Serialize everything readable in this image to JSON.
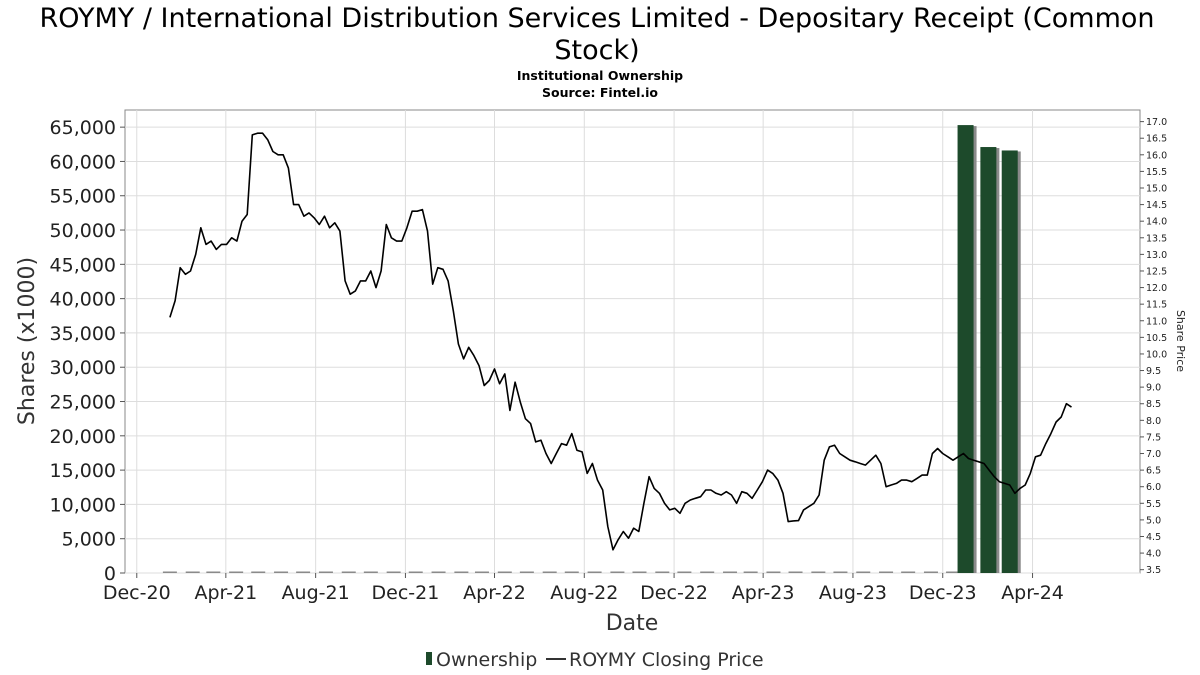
{
  "chart_data": {
    "type": "bar+line",
    "title_line1": "ROYMY / International Distribution Services Limited - Depositary Receipt (Common",
    "title_line2": "Stock)",
    "subtitle": "Institutional Ownership",
    "source": "Source: Fintel.io",
    "xlabel": "Date",
    "ylabel": "Shares (x1000)",
    "y2label": "Share Price",
    "ylim": [
      0,
      67500
    ],
    "y2lim": [
      3.4,
      17.35
    ],
    "xlim": [
      "2020-11-15",
      "2024-08-25"
    ],
    "grid": true,
    "legend_position": "bottom-center",
    "x_ticks": [
      {
        "date": "2020-12-01",
        "label": "Dec-20"
      },
      {
        "date": "2021-04-01",
        "label": "Apr-21"
      },
      {
        "date": "2021-08-01",
        "label": "Aug-21"
      },
      {
        "date": "2021-12-01",
        "label": "Dec-21"
      },
      {
        "date": "2022-04-01",
        "label": "Apr-22"
      },
      {
        "date": "2022-08-01",
        "label": "Aug-22"
      },
      {
        "date": "2022-12-01",
        "label": "Dec-22"
      },
      {
        "date": "2023-04-01",
        "label": "Apr-23"
      },
      {
        "date": "2023-08-01",
        "label": "Aug-23"
      },
      {
        "date": "2023-12-01",
        "label": "Dec-23"
      },
      {
        "date": "2024-04-01",
        "label": "Apr-24"
      }
    ],
    "y_ticks": [
      {
        "value": 0,
        "label": "0"
      },
      {
        "value": 5000,
        "label": "5,000"
      },
      {
        "value": 10000,
        "label": "10,000"
      },
      {
        "value": 15000,
        "label": "15,000"
      },
      {
        "value": 20000,
        "label": "20,000"
      },
      {
        "value": 25000,
        "label": "25,000"
      },
      {
        "value": 30000,
        "label": "30,000"
      },
      {
        "value": 35000,
        "label": "35,000"
      },
      {
        "value": 40000,
        "label": "40,000"
      },
      {
        "value": 45000,
        "label": "45,000"
      },
      {
        "value": 50000,
        "label": "50,000"
      },
      {
        "value": 55000,
        "label": "55,000"
      },
      {
        "value": 60000,
        "label": "60,000"
      },
      {
        "value": 65000,
        "label": "65,000"
      }
    ],
    "y2_ticks": [
      {
        "value": 3.5,
        "label": "3.5"
      },
      {
        "value": 4.0,
        "label": "4.0"
      },
      {
        "value": 4.5,
        "label": "4.5"
      },
      {
        "value": 5.0,
        "label": "5.0"
      },
      {
        "value": 5.5,
        "label": "5.5"
      },
      {
        "value": 6.0,
        "label": "6.0"
      },
      {
        "value": 6.5,
        "label": "6.5"
      },
      {
        "value": 7.0,
        "label": "7.0"
      },
      {
        "value": 7.5,
        "label": "7.5"
      },
      {
        "value": 8.0,
        "label": "8.0"
      },
      {
        "value": 8.5,
        "label": "8.5"
      },
      {
        "value": 9.0,
        "label": "9.0"
      },
      {
        "value": 9.5,
        "label": "9.5"
      },
      {
        "value": 10.0,
        "label": "10.0"
      },
      {
        "value": 10.5,
        "label": "10.5"
      },
      {
        "value": 11.0,
        "label": "11.0"
      },
      {
        "value": 11.5,
        "label": "11.5"
      },
      {
        "value": 12.0,
        "label": "12.0"
      },
      {
        "value": 12.5,
        "label": "12.5"
      },
      {
        "value": 13.0,
        "label": "13.0"
      },
      {
        "value": 13.5,
        "label": "13.5"
      },
      {
        "value": 14.0,
        "label": "14.0"
      },
      {
        "value": 14.5,
        "label": "14.5"
      },
      {
        "value": 15.0,
        "label": "15.0"
      },
      {
        "value": 15.5,
        "label": "15.5"
      },
      {
        "value": 16.0,
        "label": "16.0"
      },
      {
        "value": 16.5,
        "label": "16.5"
      },
      {
        "value": 17.0,
        "label": "17.0"
      }
    ],
    "legend": [
      {
        "name": "Ownership",
        "color": "#1d4a2b"
      },
      {
        "name": "ROYMY Closing Price",
        "color": "#000000"
      }
    ],
    "series": [
      {
        "name": "Ownership",
        "kind": "bar",
        "axis": "left",
        "color": "#1d4a2b",
        "shadow_color": "#8a8a8a",
        "points": [
          {
            "date": "2021-01-15",
            "value": 0
          },
          {
            "date": "2021-02-15",
            "value": 0
          },
          {
            "date": "2021-03-15",
            "value": 0
          },
          {
            "date": "2021-04-15",
            "value": 0
          },
          {
            "date": "2021-05-15",
            "value": 0
          },
          {
            "date": "2021-06-15",
            "value": 0
          },
          {
            "date": "2021-07-15",
            "value": 0
          },
          {
            "date": "2021-08-15",
            "value": 0
          },
          {
            "date": "2021-09-15",
            "value": 0
          },
          {
            "date": "2021-10-15",
            "value": 0
          },
          {
            "date": "2021-11-15",
            "value": 0
          },
          {
            "date": "2021-12-15",
            "value": 0
          },
          {
            "date": "2022-01-15",
            "value": 0
          },
          {
            "date": "2022-02-15",
            "value": 0
          },
          {
            "date": "2022-03-15",
            "value": 0
          },
          {
            "date": "2022-04-15",
            "value": 0
          },
          {
            "date": "2022-05-15",
            "value": 0
          },
          {
            "date": "2022-06-15",
            "value": 0
          },
          {
            "date": "2022-07-15",
            "value": 0
          },
          {
            "date": "2022-08-15",
            "value": 0
          },
          {
            "date": "2022-09-15",
            "value": 0
          },
          {
            "date": "2022-10-15",
            "value": 0
          },
          {
            "date": "2022-11-15",
            "value": 0
          },
          {
            "date": "2022-12-15",
            "value": 0
          },
          {
            "date": "2023-01-15",
            "value": 0
          },
          {
            "date": "2023-02-15",
            "value": 0
          },
          {
            "date": "2023-03-15",
            "value": 0
          },
          {
            "date": "2023-04-15",
            "value": 0
          },
          {
            "date": "2023-05-15",
            "value": 0
          },
          {
            "date": "2023-06-15",
            "value": 0
          },
          {
            "date": "2023-07-15",
            "value": 0
          },
          {
            "date": "2023-08-15",
            "value": 0
          },
          {
            "date": "2023-09-15",
            "value": 0
          },
          {
            "date": "2023-10-15",
            "value": 0
          },
          {
            "date": "2023-11-15",
            "value": 0
          },
          {
            "date": "2023-12-15",
            "value": 0
          },
          {
            "date": "2024-01-01",
            "value": 65300
          },
          {
            "date": "2024-02-01",
            "value": 62100
          },
          {
            "date": "2024-03-01",
            "value": 61600
          }
        ]
      },
      {
        "name": "ROYMY Closing Price",
        "kind": "line",
        "axis": "right",
        "color": "#000000",
        "points": [
          [
            "2021-01-15",
            11.1
          ],
          [
            "2021-01-22",
            11.6
          ],
          [
            "2021-01-29",
            12.6
          ],
          [
            "2021-02-05",
            12.4
          ],
          [
            "2021-02-12",
            12.5
          ],
          [
            "2021-02-19",
            13.0
          ],
          [
            "2021-02-26",
            13.8
          ],
          [
            "2021-03-05",
            13.3
          ],
          [
            "2021-03-12",
            13.4
          ],
          [
            "2021-03-19",
            13.15
          ],
          [
            "2021-03-26",
            13.3
          ],
          [
            "2021-04-02",
            13.3
          ],
          [
            "2021-04-09",
            13.5
          ],
          [
            "2021-04-16",
            13.4
          ],
          [
            "2021-04-23",
            14.0
          ],
          [
            "2021-04-30",
            14.2
          ],
          [
            "2021-05-07",
            16.6
          ],
          [
            "2021-05-14",
            16.65
          ],
          [
            "2021-05-21",
            16.65
          ],
          [
            "2021-05-28",
            16.45
          ],
          [
            "2021-06-04",
            16.1
          ],
          [
            "2021-06-11",
            16.0
          ],
          [
            "2021-06-18",
            16.0
          ],
          [
            "2021-06-25",
            15.6
          ],
          [
            "2021-07-02",
            14.5
          ],
          [
            "2021-07-09",
            14.5
          ],
          [
            "2021-07-16",
            14.15
          ],
          [
            "2021-07-23",
            14.25
          ],
          [
            "2021-07-30",
            14.1
          ],
          [
            "2021-08-06",
            13.9
          ],
          [
            "2021-08-13",
            14.15
          ],
          [
            "2021-08-20",
            13.8
          ],
          [
            "2021-08-27",
            13.95
          ],
          [
            "2021-09-03",
            13.7
          ],
          [
            "2021-09-10",
            12.2
          ],
          [
            "2021-09-17",
            11.8
          ],
          [
            "2021-09-24",
            11.9
          ],
          [
            "2021-10-01",
            12.2
          ],
          [
            "2021-10-08",
            12.2
          ],
          [
            "2021-10-15",
            12.5
          ],
          [
            "2021-10-22",
            12.0
          ],
          [
            "2021-10-29",
            12.5
          ],
          [
            "2021-11-05",
            13.9
          ],
          [
            "2021-11-12",
            13.5
          ],
          [
            "2021-11-19",
            13.4
          ],
          [
            "2021-11-26",
            13.4
          ],
          [
            "2021-12-03",
            13.8
          ],
          [
            "2021-12-10",
            14.3
          ],
          [
            "2021-12-17",
            14.3
          ],
          [
            "2021-12-24",
            14.35
          ],
          [
            "2021-12-31",
            13.7
          ],
          [
            "2022-01-07",
            12.1
          ],
          [
            "2022-01-14",
            12.6
          ],
          [
            "2022-01-21",
            12.55
          ],
          [
            "2022-01-28",
            12.2
          ],
          [
            "2022-02-04",
            11.3
          ],
          [
            "2022-02-11",
            10.3
          ],
          [
            "2022-02-18",
            9.85
          ],
          [
            "2022-02-25",
            10.2
          ],
          [
            "2022-03-04",
            9.95
          ],
          [
            "2022-03-11",
            9.65
          ],
          [
            "2022-03-18",
            9.05
          ],
          [
            "2022-03-25",
            9.2
          ],
          [
            "2022-04-01",
            9.55
          ],
          [
            "2022-04-08",
            9.1
          ],
          [
            "2022-04-15",
            9.4
          ],
          [
            "2022-04-22",
            8.3
          ],
          [
            "2022-04-29",
            9.15
          ],
          [
            "2022-05-06",
            8.55
          ],
          [
            "2022-05-13",
            8.05
          ],
          [
            "2022-05-20",
            7.9
          ],
          [
            "2022-05-27",
            7.35
          ],
          [
            "2022-06-03",
            7.4
          ],
          [
            "2022-06-10",
            7.0
          ],
          [
            "2022-06-17",
            6.7
          ],
          [
            "2022-06-24",
            7.0
          ],
          [
            "2022-07-01",
            7.3
          ],
          [
            "2022-07-08",
            7.25
          ],
          [
            "2022-07-15",
            7.6
          ],
          [
            "2022-07-22",
            7.1
          ],
          [
            "2022-07-29",
            7.05
          ],
          [
            "2022-08-05",
            6.4
          ],
          [
            "2022-08-12",
            6.7
          ],
          [
            "2022-08-19",
            6.2
          ],
          [
            "2022-08-26",
            5.9
          ],
          [
            "2022-09-02",
            4.8
          ],
          [
            "2022-09-09",
            4.1
          ],
          [
            "2022-09-16",
            4.4
          ],
          [
            "2022-09-23",
            4.65
          ],
          [
            "2022-09-30",
            4.45
          ],
          [
            "2022-10-07",
            4.75
          ],
          [
            "2022-10-14",
            4.65
          ],
          [
            "2022-10-21",
            5.5
          ],
          [
            "2022-10-28",
            6.3
          ],
          [
            "2022-11-04",
            5.95
          ],
          [
            "2022-11-11",
            5.8
          ],
          [
            "2022-11-18",
            5.5
          ],
          [
            "2022-11-25",
            5.3
          ],
          [
            "2022-12-02",
            5.35
          ],
          [
            "2022-12-09",
            5.2
          ],
          [
            "2022-12-16",
            5.5
          ],
          [
            "2022-12-23",
            5.6
          ],
          [
            "2022-12-30",
            5.65
          ],
          [
            "2023-01-06",
            5.7
          ],
          [
            "2023-01-13",
            5.9
          ],
          [
            "2023-01-20",
            5.9
          ],
          [
            "2023-01-27",
            5.8
          ],
          [
            "2023-02-03",
            5.75
          ],
          [
            "2023-02-10",
            5.85
          ],
          [
            "2023-02-17",
            5.75
          ],
          [
            "2023-02-24",
            5.5
          ],
          [
            "2023-03-03",
            5.85
          ],
          [
            "2023-03-10",
            5.8
          ],
          [
            "2023-03-17",
            5.65
          ],
          [
            "2023-03-24",
            5.9
          ],
          [
            "2023-03-31",
            6.15
          ],
          [
            "2023-04-07",
            6.5
          ],
          [
            "2023-04-14",
            6.4
          ],
          [
            "2023-04-21",
            6.2
          ],
          [
            "2023-04-28",
            5.8
          ],
          [
            "2023-05-05",
            4.95
          ],
          [
            "2023-05-12",
            4.97
          ],
          [
            "2023-05-19",
            4.98
          ],
          [
            "2023-05-26",
            5.3
          ],
          [
            "2023-06-02",
            5.4
          ],
          [
            "2023-06-09",
            5.5
          ],
          [
            "2023-06-16",
            5.75
          ],
          [
            "2023-06-23",
            6.8
          ],
          [
            "2023-06-30",
            7.2
          ],
          [
            "2023-07-07",
            7.25
          ],
          [
            "2023-07-14",
            7.0
          ],
          [
            "2023-07-21",
            6.9
          ],
          [
            "2023-07-28",
            6.8
          ],
          [
            "2023-08-04",
            6.75
          ],
          [
            "2023-08-11",
            6.7
          ],
          [
            "2023-08-18",
            6.65
          ],
          [
            "2023-08-25",
            6.8
          ],
          [
            "2023-09-01",
            6.95
          ],
          [
            "2023-09-08",
            6.7
          ],
          [
            "2023-09-15",
            6.0
          ],
          [
            "2023-09-22",
            6.05
          ],
          [
            "2023-09-29",
            6.1
          ],
          [
            "2023-10-06",
            6.2
          ],
          [
            "2023-10-13",
            6.2
          ],
          [
            "2023-10-20",
            6.15
          ],
          [
            "2023-10-27",
            6.25
          ],
          [
            "2023-11-03",
            6.35
          ],
          [
            "2023-11-10",
            6.35
          ],
          [
            "2023-11-17",
            7.0
          ],
          [
            "2023-11-24",
            7.15
          ],
          [
            "2023-12-01",
            7.0
          ],
          [
            "2023-12-08",
            6.9
          ],
          [
            "2023-12-15",
            6.8
          ],
          [
            "2023-12-22",
            6.9
          ],
          [
            "2023-12-29",
            7.0
          ],
          [
            "2024-01-05",
            6.85
          ],
          [
            "2024-01-12",
            6.8
          ],
          [
            "2024-01-19",
            6.75
          ],
          [
            "2024-01-26",
            6.7
          ],
          [
            "2024-02-02",
            6.5
          ],
          [
            "2024-02-09",
            6.3
          ],
          [
            "2024-02-16",
            6.15
          ],
          [
            "2024-02-23",
            6.1
          ],
          [
            "2024-03-01",
            6.05
          ],
          [
            "2024-03-08",
            5.8
          ],
          [
            "2024-03-15",
            5.95
          ],
          [
            "2024-03-22",
            6.05
          ],
          [
            "2024-03-29",
            6.4
          ],
          [
            "2024-04-05",
            6.9
          ],
          [
            "2024-04-12",
            6.95
          ],
          [
            "2024-04-19",
            7.3
          ],
          [
            "2024-04-26",
            7.6
          ],
          [
            "2024-05-03",
            7.95
          ],
          [
            "2024-05-10",
            8.1
          ],
          [
            "2024-05-17",
            8.5
          ],
          [
            "2024-05-24",
            8.4
          ]
        ]
      }
    ]
  }
}
